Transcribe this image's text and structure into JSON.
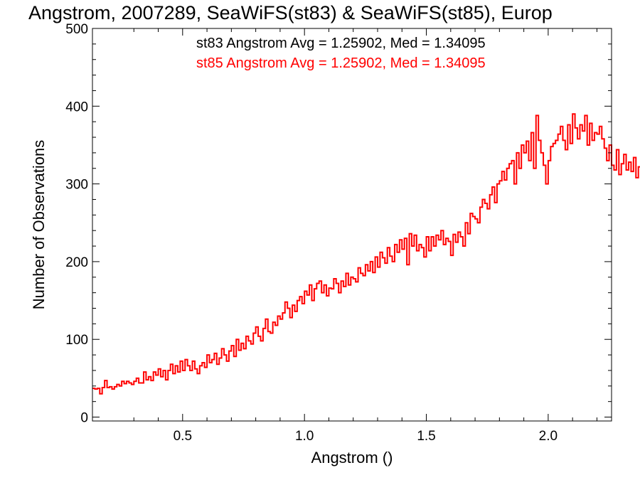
{
  "chart_data": {
    "type": "histogram-step",
    "title": "Angstrom, 2007289, SeaWiFS(st83) & SeaWiFS(st85), Europ",
    "xlabel": "Angstrom ()",
    "ylabel": "Number of Observations",
    "xlim": [
      0.13,
      2.26
    ],
    "ylim": [
      -5,
      500
    ],
    "xticks": [
      0.5,
      1.0,
      1.5,
      2.0
    ],
    "xtick_labels": [
      "0.5",
      "1.0",
      "1.5",
      "2.0"
    ],
    "yticks": [
      0,
      100,
      200,
      300,
      400,
      500
    ],
    "ytick_labels": [
      "0",
      "100",
      "200",
      "300",
      "400",
      "500"
    ],
    "annotations": [
      {
        "text": "st83 Angstrom Avg = 1.25902, Med = 1.34095",
        "color": "#000000"
      },
      {
        "text": "st85 Angstrom Avg = 1.25902, Med = 1.34095",
        "color": "#ff0000"
      }
    ],
    "series": [
      {
        "color": "#ff0000",
        "bin_width": 0.01,
        "x_start": 0.13,
        "values": [
          37,
          36,
          37,
          30,
          38,
          47,
          38,
          39,
          36,
          39,
          42,
          40,
          46,
          43,
          46,
          44,
          42,
          46,
          50,
          44,
          44,
          58,
          48,
          52,
          47,
          58,
          54,
          62,
          52,
          60,
          48,
          60,
          68,
          56,
          66,
          58,
          72,
          60,
          74,
          66,
          60,
          72,
          62,
          56,
          66,
          70,
          64,
          80,
          70,
          74,
          82,
          68,
          76,
          88,
          80,
          72,
          85,
          92,
          78,
          100,
          86,
          95,
          88,
          104,
          98,
          94,
          108,
          116,
          104,
          98,
          114,
          126,
          110,
          108,
          122,
          118,
          130,
          126,
          134,
          148,
          140,
          128,
          144,
          136,
          150,
          155,
          146,
          162,
          157,
          170,
          150,
          165,
          172,
          175,
          160,
          170,
          156,
          166,
          165,
          178,
          172,
          160,
          175,
          168,
          185,
          170,
          180,
          178,
          174,
          192,
          185,
          182,
          196,
          188,
          200,
          186,
          206,
          193,
          212,
          205,
          198,
          218,
          207,
          200,
          222,
          212,
          228,
          216,
          230,
          196,
          236,
          220,
          234,
          214,
          222,
          218,
          206,
          232,
          214,
          232,
          220,
          234,
          228,
          240,
          222,
          230,
          226,
          208,
          235,
          225,
          238,
          232,
          220,
          250,
          236,
          262,
          258,
          255,
          250,
          270,
          280,
          275,
          268,
          286,
          296,
          276,
          300,
          304,
          316,
          305,
          320,
          326,
          330,
          300,
          340,
          320,
          350,
          340,
          355,
          330,
          366,
          320,
          388,
          356,
          340,
          324,
          300,
          330,
          348,
          352,
          356,
          364,
          374,
          356,
          344,
          376,
          352,
          390,
          372,
          358,
          376,
          368,
          388,
          350,
          378,
          356,
          366,
          364,
          374,
          358,
          346,
          330,
          350,
          324,
          318,
          344,
          312,
          326,
          338,
          318,
          328,
          316,
          334,
          308,
          322,
          312,
          314,
          316,
          330,
          318,
          340,
          326,
          334,
          348,
          354,
          355,
          364,
          372,
          364,
          378,
          366,
          384,
          372,
          366,
          376,
          350,
          340,
          328,
          316,
          300,
          312,
          296,
          310,
          286,
          302,
          290,
          276,
          298,
          262,
          276,
          296,
          266,
          278,
          262,
          270,
          268,
          276,
          260,
          264,
          250,
          262,
          254,
          236,
          244,
          256,
          246,
          266,
          232,
          248,
          240,
          228,
          236,
          246,
          226,
          238,
          228,
          218,
          196,
          212,
          206,
          186,
          198,
          178,
          186,
          160,
          168,
          146,
          154,
          142,
          128,
          140,
          118,
          106,
          88,
          102,
          98,
          82,
          94,
          72,
          86,
          90,
          66,
          72,
          56,
          70,
          60,
          62,
          70,
          64,
          56,
          54,
          72,
          68,
          62,
          478,
          190,
          10,
          2,
          0,
          0,
          0,
          0,
          0,
          0,
          0,
          0,
          0,
          0
        ]
      }
    ]
  }
}
